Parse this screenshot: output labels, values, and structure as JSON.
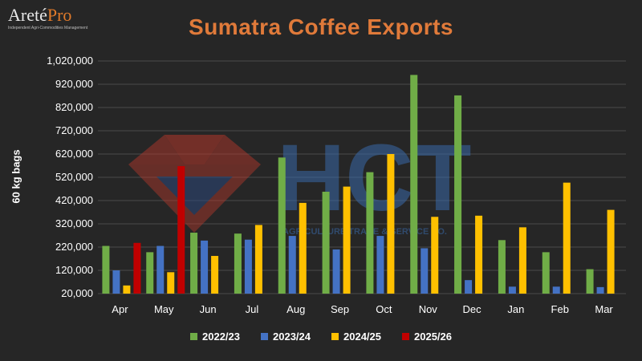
{
  "logo": {
    "name_main": "Areté",
    "name_accent": "Pro",
    "tagline": "Independent Agri-Commodities Management"
  },
  "watermark": {
    "brand": "HCT",
    "tagline": "AGRICULTURE TRADE & SERVICE CO."
  },
  "colors": {
    "background": "#262626",
    "title": "#e07a3a",
    "gridline": "#4a4a4a"
  },
  "chart_data": {
    "type": "bar",
    "title": "Sumatra Coffee Exports",
    "ylabel": "60 kg bags",
    "xlabel": "",
    "ylim": [
      20000,
      1020000
    ],
    "yticks": [
      20000,
      120000,
      220000,
      320000,
      420000,
      520000,
      620000,
      720000,
      820000,
      920000,
      1020000
    ],
    "ytick_labels": [
      "20,000",
      "120,000",
      "220,000",
      "320,000",
      "420,000",
      "520,000",
      "620,000",
      "720,000",
      "820,000",
      "920,000",
      "1,020,000"
    ],
    "grid": true,
    "legend_position": "bottom",
    "categories": [
      "Apr",
      "May",
      "Jun",
      "Jul",
      "Aug",
      "Sep",
      "Oct",
      "Nov",
      "Dec",
      "Jan",
      "Feb",
      "Mar"
    ],
    "series": [
      {
        "name": "2022/23",
        "color": "#70ad47",
        "values": [
          225000,
          198000,
          282000,
          278000,
          605000,
          458000,
          542000,
          960000,
          872000,
          250000,
          198000,
          125000
        ]
      },
      {
        "name": "2023/24",
        "color": "#4472c4",
        "values": [
          120000,
          225000,
          248000,
          252000,
          268000,
          210000,
          268000,
          215000,
          78000,
          50000,
          50000,
          48000
        ]
      },
      {
        "name": "2024/25",
        "color": "#ffc000",
        "values": [
          55000,
          112000,
          182000,
          315000,
          410000,
          480000,
          620000,
          350000,
          355000,
          305000,
          497000,
          380000
        ]
      },
      {
        "name": "2025/26",
        "color": "#c00000",
        "values": [
          238000,
          568000,
          null,
          null,
          null,
          null,
          null,
          null,
          null,
          null,
          null,
          null
        ]
      }
    ]
  }
}
